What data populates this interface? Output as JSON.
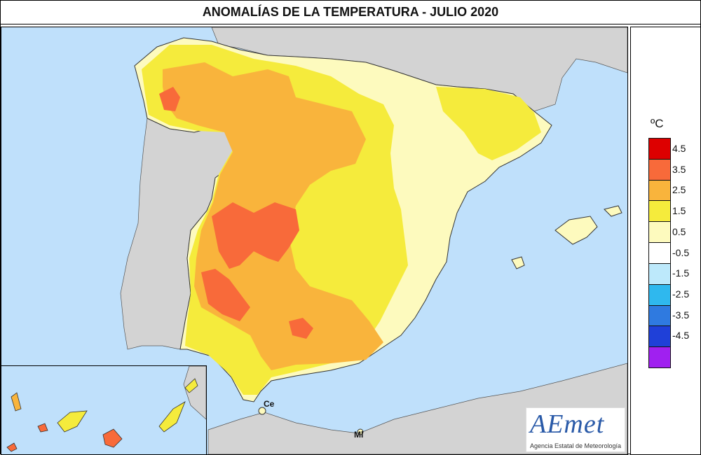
{
  "title": "ANOMALÍAS DE LA TEMPERATURA - JULIO 2020",
  "legend": {
    "unit": "ºC",
    "classes": [
      {
        "color": "#dd0000",
        "label": "4.5"
      },
      {
        "color": "#f86a3a",
        "label": "3.5"
      },
      {
        "color": "#f9b43c",
        "label": "2.5"
      },
      {
        "color": "#f5eb3c",
        "label": "1.5"
      },
      {
        "color": "#fdfabe",
        "label": "0.5"
      },
      {
        "color": "#ffffff",
        "label": "-0.5"
      },
      {
        "color": "#bde9fb",
        "label": "-1.5"
      },
      {
        "color": "#2fb8ee",
        "label": "-2.5"
      },
      {
        "color": "#2f7ae0",
        "label": "-3.5"
      },
      {
        "color": "#1f40d8",
        "label": "-4.5"
      },
      {
        "color": "#a020f0",
        "label": ""
      }
    ]
  },
  "cities": {
    "ceuta": "Ce",
    "melilla": "Ml"
  },
  "logo": {
    "word": "AEmet",
    "subtitle": "Agencia Estatal de Meteorología"
  },
  "colors": {
    "sea": "#bfe0fb",
    "land_other": "#d3d3d3",
    "border": "#333333"
  }
}
